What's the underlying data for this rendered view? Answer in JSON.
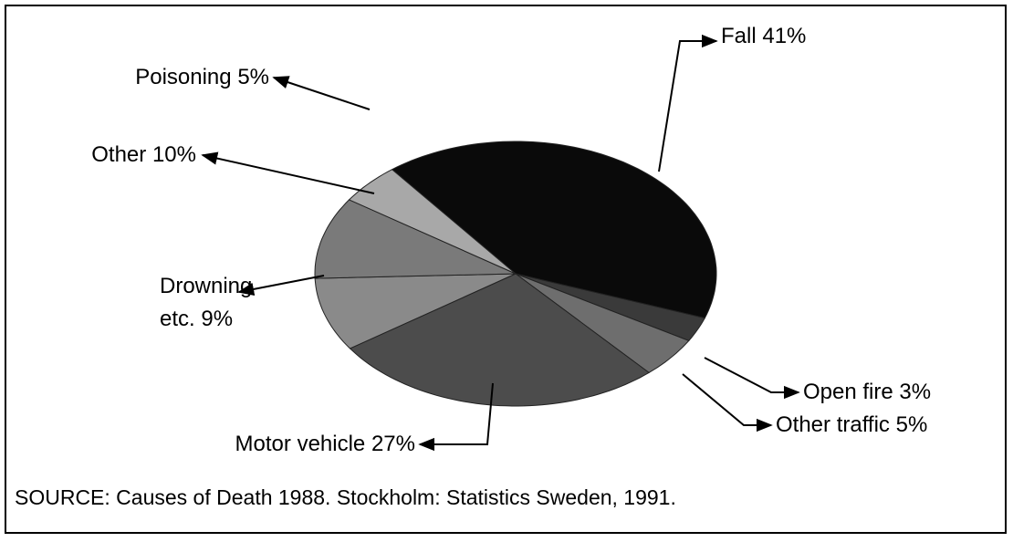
{
  "chart_data": {
    "type": "pie",
    "categories": [
      "Fall",
      "Open fire",
      "Other traffic",
      "Motor vehicle",
      "Drowning etc.",
      "Other",
      "Poisoning"
    ],
    "values": [
      41,
      3,
      5,
      27,
      9,
      10,
      5
    ],
    "value_labels": [
      "41%",
      "3%",
      "5%",
      "27%",
      "9%",
      "10%",
      "5%"
    ],
    "colors": [
      "#0a0a0a",
      "#3a3a3a",
      "#6e6e6e",
      "#4c4c4c",
      "#8a8a8a",
      "#7a7a7a",
      "#a8a8a8"
    ],
    "source": "SOURCE: Causes of Death 1988. Stockholm: Statistics Sweden, 1991."
  }
}
